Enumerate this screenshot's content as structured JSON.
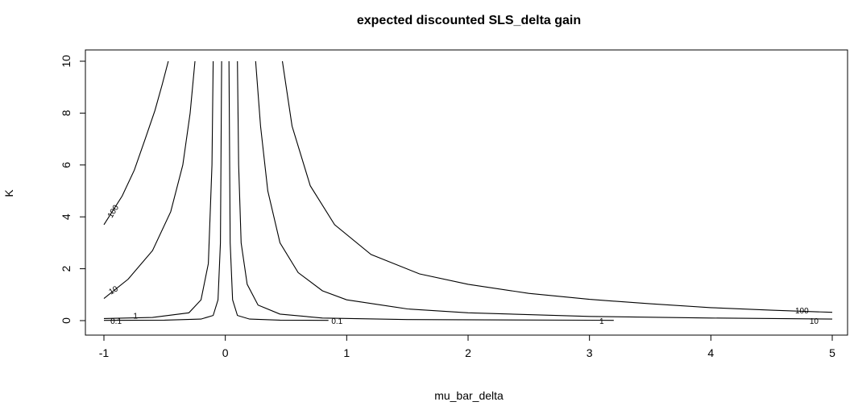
{
  "chart_data": {
    "type": "contour",
    "title": "expected discounted SLS_delta gain",
    "xlabel": "mu_bar_delta",
    "ylabel": "K",
    "xlim": [
      -1,
      5
    ],
    "ylim": [
      0,
      10
    ],
    "x_ticks": [
      -1,
      0,
      1,
      2,
      3,
      4,
      5
    ],
    "y_ticks": [
      0,
      2,
      4,
      6,
      8,
      10
    ],
    "grid": false,
    "legend": "none",
    "levels": [
      {
        "level": 100,
        "label": "100",
        "segments": [
          {
            "x": [
              -1.0,
              -0.85,
              -0.75,
              -0.66,
              -0.58,
              -0.52,
              -0.47
            ],
            "y": [
              3.7,
              4.8,
              5.8,
              7.0,
              8.1,
              9.1,
              10.0
            ]
          },
          {
            "x": [
              0.47,
              0.55,
              0.7,
              0.9,
              1.2,
              1.6,
              2.0,
              2.5,
              3.0,
              3.5,
              4.0,
              4.5,
              5.0
            ],
            "y": [
              10.0,
              7.5,
              5.2,
              3.7,
              2.55,
              1.8,
              1.4,
              1.05,
              0.82,
              0.65,
              0.5,
              0.4,
              0.32
            ]
          }
        ]
      },
      {
        "level": 10,
        "label": "10",
        "segments": [
          {
            "x": [
              -1.0,
              -0.8,
              -0.6,
              -0.45,
              -0.35,
              -0.29,
              -0.25
            ],
            "y": [
              0.85,
              1.6,
              2.7,
              4.2,
              6.0,
              8.0,
              10.0
            ]
          },
          {
            "x": [
              0.25,
              0.29,
              0.35,
              0.45,
              0.6,
              0.8,
              1.0,
              1.5,
              2.0,
              3.0,
              4.0,
              5.0
            ],
            "y": [
              10.0,
              7.5,
              5.0,
              3.0,
              1.85,
              1.15,
              0.8,
              0.45,
              0.3,
              0.16,
              0.1,
              0.06
            ]
          }
        ]
      },
      {
        "level": 1,
        "label": "1",
        "segments": [
          {
            "x": [
              -1.0,
              -0.6,
              -0.3,
              -0.2,
              -0.14,
              -0.11,
              -0.1
            ],
            "y": [
              0.08,
              0.12,
              0.3,
              0.8,
              2.2,
              6.0,
              10.0
            ]
          },
          {
            "x": [
              0.1,
              0.11,
              0.13,
              0.18,
              0.27,
              0.45,
              0.8,
              1.5,
              3.0,
              3.2
            ],
            "y": [
              10.0,
              6.0,
              3.0,
              1.4,
              0.6,
              0.25,
              0.1,
              0.04,
              0.015,
              0.01
            ]
          }
        ]
      },
      {
        "level": 0.1,
        "label": "0.1",
        "segments": [
          {
            "x": [
              -1.0,
              -0.5,
              -0.2,
              -0.1,
              -0.06,
              -0.04,
              -0.03
            ],
            "y": [
              0.01,
              0.02,
              0.06,
              0.2,
              0.8,
              3.0,
              10.0
            ]
          },
          {
            "x": [
              0.03,
              0.04,
              0.06,
              0.1,
              0.2,
              0.45,
              0.85
            ],
            "y": [
              10.0,
              3.0,
              0.8,
              0.2,
              0.06,
              0.02,
              0.01
            ]
          }
        ]
      }
    ],
    "contour_labels": [
      {
        "text": "100",
        "x": -0.92,
        "y": 4.2,
        "angle": -58
      },
      {
        "text": "10",
        "x": -0.92,
        "y": 1.15,
        "angle": -30
      },
      {
        "text": "1",
        "x": -0.74,
        "y": 0.15,
        "angle": 0
      },
      {
        "text": "0.1",
        "x": -0.9,
        "y": -0.05,
        "angle": 0
      },
      {
        "text": "0.1",
        "x": 0.92,
        "y": -0.05,
        "angle": 0
      },
      {
        "text": "1",
        "x": 3.1,
        "y": -0.05,
        "angle": 0
      },
      {
        "text": "100",
        "x": 4.75,
        "y": 0.35,
        "angle": 0
      },
      {
        "text": "10",
        "x": 4.85,
        "y": -0.05,
        "angle": 0
      }
    ]
  }
}
